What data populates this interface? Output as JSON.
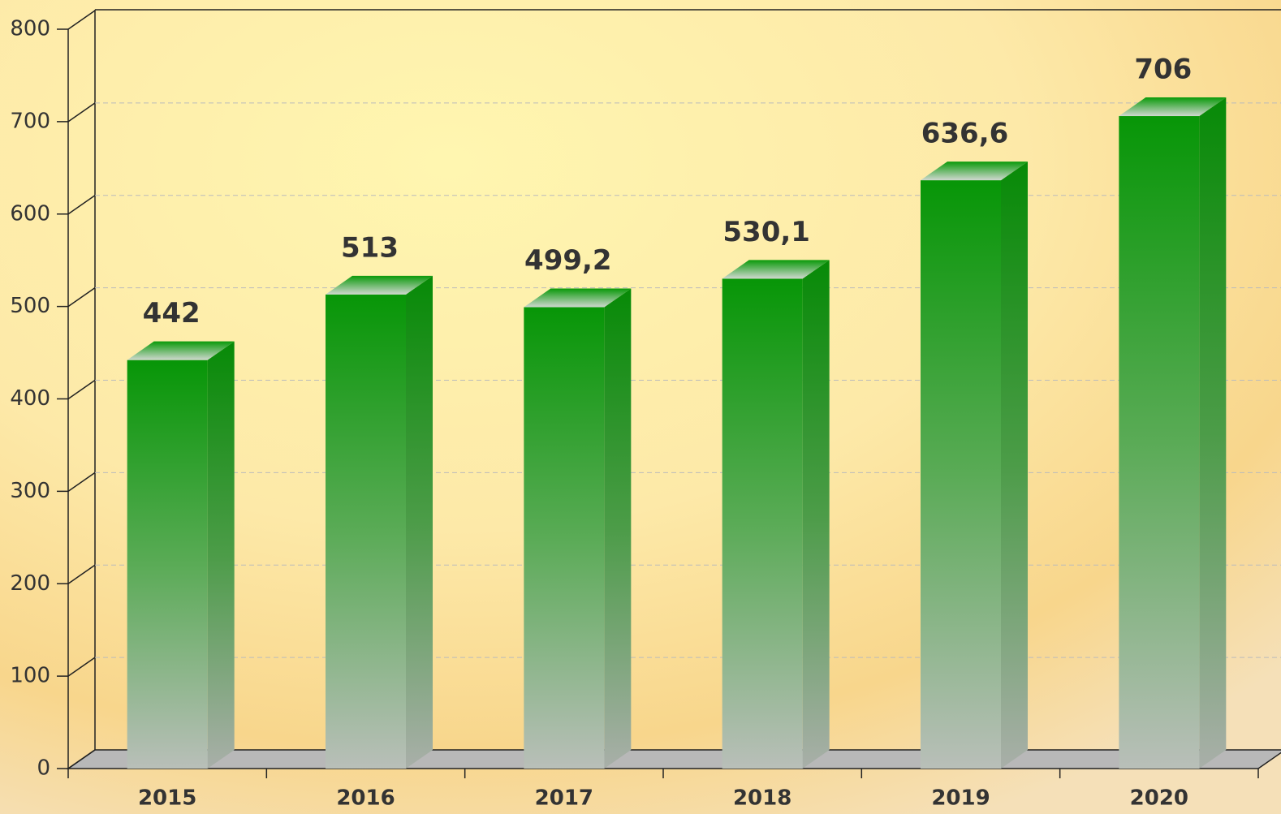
{
  "chart_data": {
    "type": "bar3d",
    "categories": [
      "2015",
      "2016",
      "2017",
      "2018",
      "2019",
      "2020"
    ],
    "values": [
      442,
      513,
      499.2,
      530.1,
      636.6,
      706
    ],
    "value_labels": [
      "442",
      "513",
      "499,2",
      "530,1",
      "636,6",
      "706"
    ],
    "color": "#0a9a0a",
    "ylim": [
      0,
      800
    ],
    "yticks": [
      0,
      100,
      200,
      300,
      400,
      500,
      600,
      700,
      800
    ],
    "grid": true
  }
}
